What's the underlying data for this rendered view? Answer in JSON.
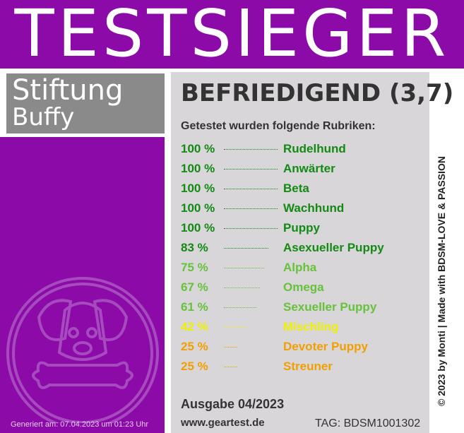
{
  "banner": {
    "title": "TESTSIEGER"
  },
  "brand": {
    "line1": "Stiftung",
    "line2": "Buffy"
  },
  "logo": {
    "icon": "dog-with-bone-icon"
  },
  "generated": "Generiert am: 07.04.2023 um 01:23 Uhr",
  "grade": "BEFRIEDIGEND (3,7)",
  "intro": "Getestet wurden folgende Rubriken:",
  "results": [
    {
      "percent_label": "100 %",
      "percent": 100,
      "category": "Rudelhund",
      "color": "#138a13"
    },
    {
      "percent_label": "100 %",
      "percent": 100,
      "category": "Anwärter",
      "color": "#138a13"
    },
    {
      "percent_label": "100 %",
      "percent": 100,
      "category": "Beta",
      "color": "#138a13"
    },
    {
      "percent_label": "100 %",
      "percent": 100,
      "category": "Wachhund",
      "color": "#138a13"
    },
    {
      "percent_label": "100 %",
      "percent": 100,
      "category": "Puppy",
      "color": "#138a13"
    },
    {
      "percent_label": "83 %",
      "percent": 83,
      "category": "Asexueller Puppy",
      "color": "#138a13"
    },
    {
      "percent_label": "75 %",
      "percent": 75,
      "category": "Alpha",
      "color": "#66c23a"
    },
    {
      "percent_label": "67 %",
      "percent": 67,
      "category": "Omega",
      "color": "#66c23a"
    },
    {
      "percent_label": "61 %",
      "percent": 61,
      "category": "Sexueller Puppy",
      "color": "#66c23a"
    },
    {
      "percent_label": "42 %",
      "percent": 42,
      "category": "Mischling",
      "color": "#f0f000"
    },
    {
      "percent_label": "25 %",
      "percent": 25,
      "category": "Devoter Puppy",
      "color": "#f0a000"
    },
    {
      "percent_label": "25 %",
      "percent": 25,
      "category": "Streuner",
      "color": "#f0a000"
    }
  ],
  "edition": "Ausgabe 04/2023",
  "website": "www.geartest.de",
  "tag": "TAG: BDSM1001302",
  "credit": "© 2023 by Monti | Made with BDSM-LOVE & PASSION",
  "colors": {
    "brand_purple": "#8b0aa8",
    "panel_gray": "#d9d6d9",
    "brand_gray": "#8a8a8a"
  }
}
